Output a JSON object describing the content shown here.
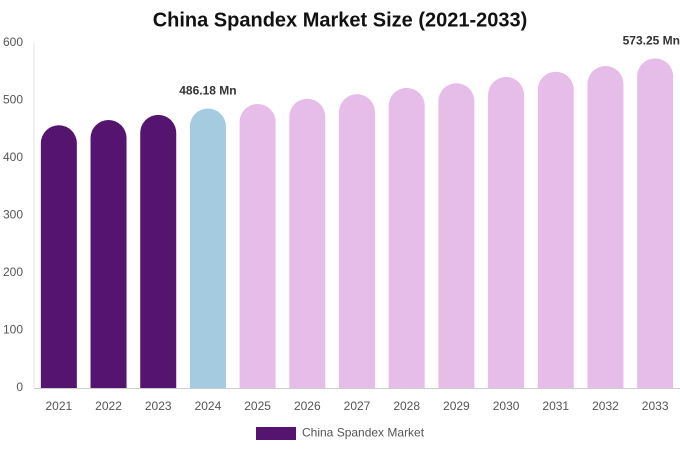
{
  "chart_data": {
    "type": "bar",
    "title": "China Spandex Market Size (2021-2033)",
    "categories": [
      "2021",
      "2022",
      "2023",
      "2024",
      "2025",
      "2026",
      "2027",
      "2028",
      "2029",
      "2030",
      "2031",
      "2032",
      "2033"
    ],
    "series": [
      {
        "name": "China Spandex Market",
        "color": "#541470",
        "values": [
          457,
          466,
          475,
          486.18,
          494,
          503,
          511,
          522,
          530,
          541,
          550,
          560,
          573.25
        ],
        "value_labels": [
          null,
          null,
          null,
          "486.18 Mn",
          null,
          null,
          null,
          null,
          null,
          null,
          null,
          null,
          "573.25 Mn"
        ]
      }
    ],
    "bar_colors": [
      "#541470",
      "#541470",
      "#541470",
      "#a5cbe0",
      "#e6bce8",
      "#e6bce8",
      "#e6bce8",
      "#e6bce8",
      "#e6bce8",
      "#e6bce8",
      "#e6bce8",
      "#e6bce8",
      "#e6bce8"
    ],
    "ylim": [
      0,
      600
    ],
    "yticks": [
      0,
      100,
      200,
      300,
      400,
      500,
      600
    ],
    "grid": false,
    "legend": "bottom"
  }
}
